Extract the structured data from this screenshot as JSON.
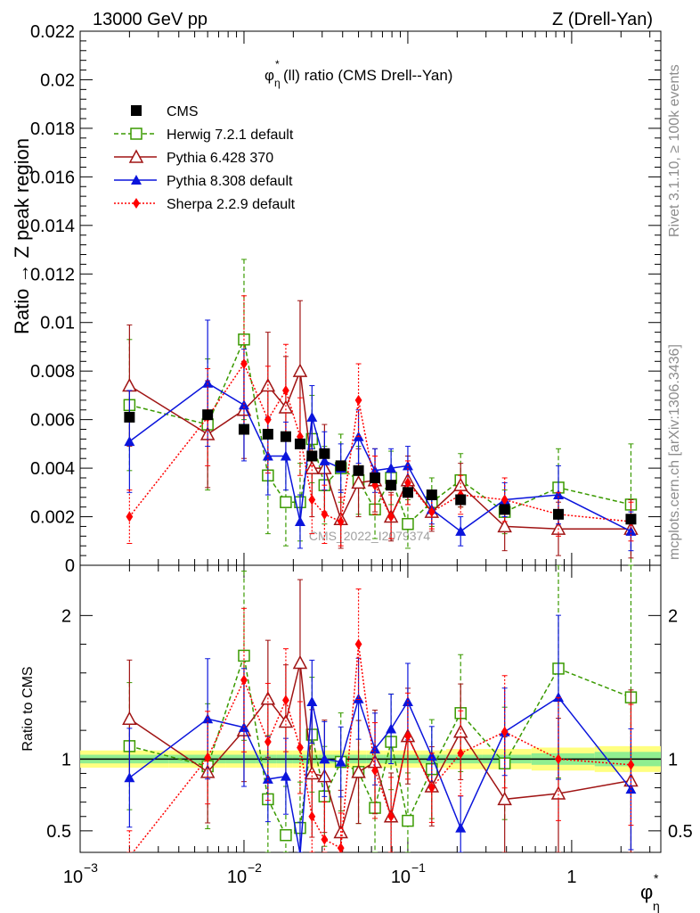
{
  "header": {
    "left": "13000 GeV pp",
    "right": "Z (Drell-Yan)"
  },
  "side_labels": {
    "rivet": "Rivet 3.1.10, ≥ 100k events",
    "mcplots": "mcplots.cern.ch [arXiv:1306.3436]"
  },
  "watermark": "CMS_2022_I2079374",
  "chart_data": [
    {
      "type": "line",
      "title": "φ*η(ll) ratio (CMS Drell--Yan)",
      "title_parts": {
        "phi": "φ",
        "star": "*",
        "eta": "η",
        "rest": "(ll) ratio (CMS Drell--Yan)"
      },
      "ylabel": "Ratio → Z peak region",
      "xlabel": "φ*η",
      "x_scale": "log",
      "xlim": [
        0.001,
        3.5
      ],
      "ylim": [
        0,
        0.022
      ],
      "yticks": [
        0,
        0.002,
        0.004,
        0.006,
        0.008,
        0.01,
        0.012,
        0.014,
        0.016,
        0.018,
        0.02,
        0.022
      ],
      "ytick_labels": [
        "0",
        "0.002",
        "0.004",
        "0.006",
        "0.008",
        "0.01",
        "0.012",
        "0.014",
        "0.016",
        "0.018",
        "0.02",
        "0.022"
      ],
      "legend_position": "top-left",
      "x": [
        0.002,
        0.006,
        0.01,
        0.014,
        0.018,
        0.022,
        0.026,
        0.031,
        0.039,
        0.05,
        0.063,
        0.079,
        0.1,
        0.14,
        0.21,
        0.39,
        0.83,
        2.3
      ],
      "series": [
        {
          "name": "CMS",
          "color": "#000000",
          "marker": "square-filled",
          "line": "none",
          "values": [
            0.0061,
            0.0062,
            0.0056,
            0.0054,
            0.0053,
            0.005,
            0.0045,
            0.0046,
            0.0041,
            0.0039,
            0.0036,
            0.0033,
            0.003,
            0.0029,
            0.0027,
            0.0023,
            0.0021,
            0.0019
          ]
        },
        {
          "name": "Herwig 7.2.1 default",
          "color": "#3a9a00",
          "marker": "square-open",
          "line": "dashed",
          "values": [
            0.0066,
            0.0058,
            0.0093,
            0.0037,
            0.0026,
            0.0026,
            0.0052,
            0.0033,
            0.004,
            0.0035,
            0.0023,
            0.0036,
            0.0017,
            0.0026,
            0.0035,
            0.0022,
            0.0032,
            0.0025
          ],
          "errors": [
            0.0027,
            0.0027,
            0.0033,
            0.0024,
            0.0018,
            0.0016,
            0.0018,
            0.0016,
            0.0014,
            0.0014,
            0.0012,
            0.0011,
            0.001,
            0.001,
            0.0011,
            0.0009,
            0.0016,
            0.0025
          ]
        },
        {
          "name": "Pythia 6.428 370",
          "color": "#a01414",
          "marker": "triangle-open",
          "line": "solid",
          "values": [
            0.0074,
            0.0054,
            0.0064,
            0.0074,
            0.0065,
            0.008,
            0.004,
            0.004,
            0.0019,
            0.0034,
            0.0035,
            0.002,
            0.0035,
            0.0022,
            0.0033,
            0.0016,
            0.0015,
            0.0015
          ],
          "errors": [
            0.0025,
            0.0022,
            0.002,
            0.0022,
            0.0021,
            0.0029,
            0.002,
            0.0018,
            0.0012,
            0.0014,
            0.0013,
            0.001,
            0.001,
            0.0008,
            0.0009,
            0.001,
            0.0011,
            0.0012
          ]
        },
        {
          "name": "Pythia 8.308 default",
          "color": "#0a14dc",
          "marker": "triangle-filled",
          "line": "solid",
          "values": [
            0.0051,
            0.0075,
            0.0066,
            0.0045,
            0.0045,
            0.0018,
            0.0061,
            0.0043,
            0.004,
            0.0053,
            0.0039,
            0.004,
            0.0041,
            0.0023,
            0.0014,
            0.0027,
            0.0029,
            0.0014
          ],
          "errors": [
            0.0021,
            0.0026,
            0.0023,
            0.0016,
            0.0014,
            0.0011,
            0.0013,
            0.0012,
            0.001,
            0.0011,
            0.0009,
            0.0008,
            0.0008,
            0.0006,
            0.0006,
            0.0007,
            0.0012,
            0.0008
          ]
        },
        {
          "name": "Sherpa 2.2.9 default",
          "color": "#ff0000",
          "marker": "diamond-filled",
          "line": "dotted",
          "values": [
            0.002,
            0.0061,
            0.0083,
            0.006,
            0.0072,
            0.0053,
            0.0027,
            0.0021,
            0.0018,
            0.0068,
            0.0033,
            0.002,
            0.0034,
            0.0022,
            0.0029,
            0.0027,
            0.0021,
            0.0018
          ],
          "errors": [
            0.0011,
            0.002,
            0.0028,
            0.0022,
            0.0019,
            0.0016,
            0.0014,
            0.0012,
            0.001,
            0.0015,
            0.0012,
            0.0009,
            0.0009,
            0.0007,
            0.0008,
            0.0009,
            0.0009,
            0.0008
          ]
        }
      ]
    },
    {
      "type": "line",
      "ylabel": "Ratio to CMS",
      "x_scale": "log",
      "xlim": [
        0.001,
        3.5
      ],
      "ylim": [
        0.35,
        2.35
      ],
      "yticks": [
        0.5,
        1,
        2
      ],
      "ytick_labels": [
        "0.5",
        "1",
        "2"
      ],
      "xticks": [
        0.001,
        0.01,
        0.1,
        1
      ],
      "xtick_labels": [
        {
          "base": "10",
          "exp": "−3"
        },
        {
          "base": "10",
          "exp": "−2"
        },
        {
          "base": "10",
          "exp": "−1"
        },
        {
          "base": "1",
          "exp": ""
        }
      ],
      "reference_band": {
        "inner_color": "#90ee90",
        "outer_color": "#ffff80",
        "inner_halfwidth": [
          0.03,
          0.03,
          0.03,
          0.03,
          0.03,
          0.03,
          0.03,
          0.03,
          0.03,
          0.03,
          0.03,
          0.03,
          0.03,
          0.03,
          0.03,
          0.03,
          0.04,
          0.05
        ],
        "outer_halfwidth": [
          0.06,
          0.06,
          0.06,
          0.06,
          0.06,
          0.06,
          0.06,
          0.06,
          0.06,
          0.06,
          0.06,
          0.06,
          0.06,
          0.06,
          0.07,
          0.07,
          0.08,
          0.09
        ]
      },
      "series": [
        {
          "name": "Herwig 7.2.1 default",
          "values": [
            1.09,
            0.95,
            1.72,
            0.72,
            0.47,
            0.52,
            1.17,
            0.74,
            0.98,
            0.91,
            0.66,
            1.12,
            0.57,
            0.93,
            1.32,
            0.97,
            1.63,
            1.43
          ]
        },
        {
          "name": "Pythia 6.428 370",
          "values": [
            1.28,
            0.91,
            1.2,
            1.42,
            1.26,
            1.67,
            0.9,
            0.88,
            0.49,
            0.91,
            0.98,
            0.6,
            1.16,
            0.81,
            1.19,
            0.72,
            0.76,
            0.85
          ]
        },
        {
          "name": "Pythia 8.308 default",
          "values": [
            0.87,
            1.28,
            1.22,
            0.86,
            0.88,
            0.34,
            1.4,
            1.0,
            0.98,
            1.42,
            1.07,
            1.21,
            1.4,
            1.02,
            0.52,
            1.19,
            1.43,
            0.79
          ]
        },
        {
          "name": "Sherpa 2.2.9 default",
          "values": [
            0.32,
            1.01,
            1.55,
            1.12,
            1.41,
            1.08,
            0.6,
            0.44,
            0.38,
            1.8,
            0.92,
            0.6,
            1.16,
            0.8,
            1.04,
            1.19,
            1.0,
            0.96
          ]
        }
      ]
    }
  ]
}
